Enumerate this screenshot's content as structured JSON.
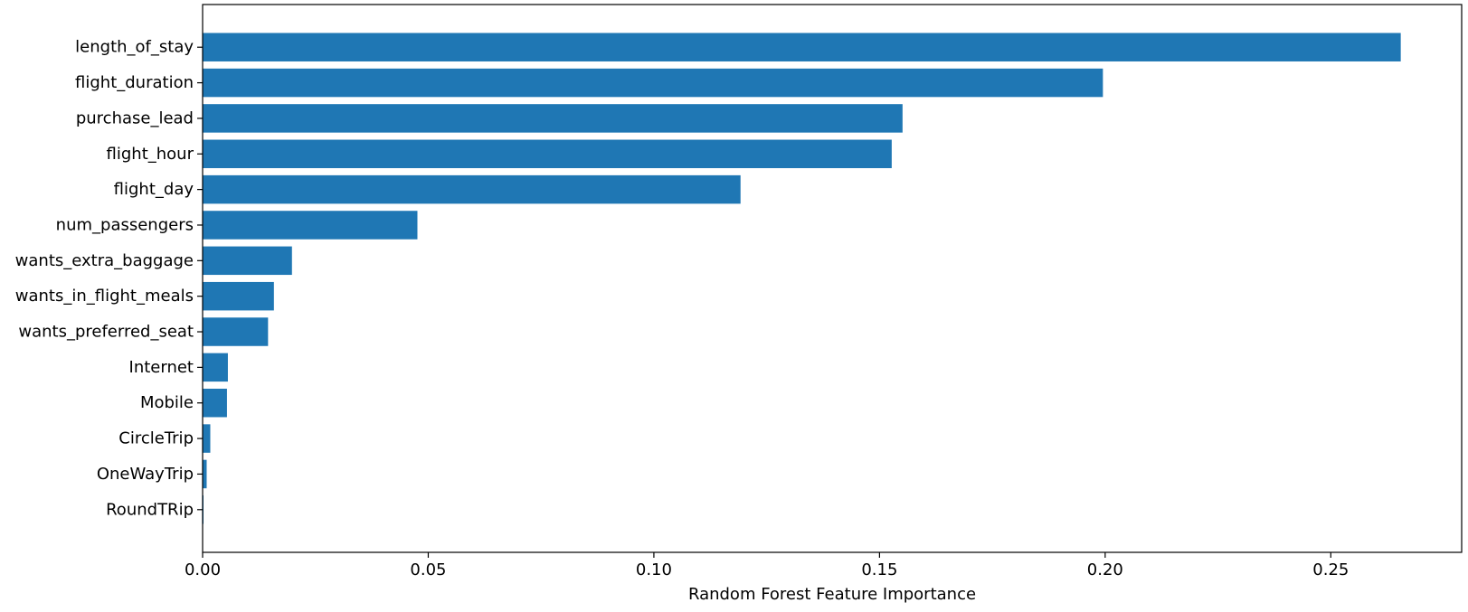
{
  "chart_data": {
    "type": "bar",
    "orientation": "horizontal",
    "title": "",
    "xlabel": "Random Forest Feature Importance",
    "ylabel": "",
    "xlim": [
      0,
      0.279
    ],
    "xticks": [
      0.0,
      0.05,
      0.1,
      0.15,
      0.2,
      0.25
    ],
    "xtick_labels": [
      "0.00",
      "0.05",
      "0.10",
      "0.15",
      "0.20",
      "0.25"
    ],
    "grid": false,
    "legend": false,
    "bar_color": "#1f77b4",
    "categories": [
      "length_of_stay",
      "flight_duration",
      "purchase_lead",
      "flight_hour",
      "flight_day",
      "num_passengers",
      "wants_extra_baggage",
      "wants_in_flight_meals",
      "wants_preferred_seat",
      "Internet",
      "Mobile",
      "CircleTrip",
      "OneWayTrip",
      "RoundTRip"
    ],
    "values": [
      0.2655,
      0.1995,
      0.1551,
      0.1527,
      0.1192,
      0.0476,
      0.0198,
      0.0158,
      0.0145,
      0.0056,
      0.0054,
      0.0017,
      0.0009,
      0.0002
    ]
  }
}
